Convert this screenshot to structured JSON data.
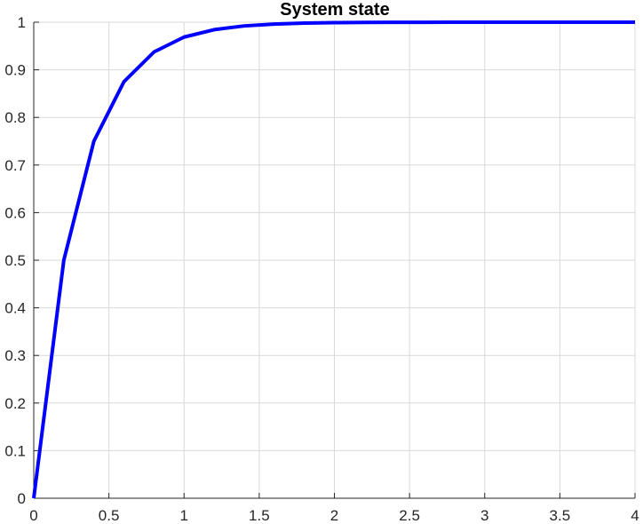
{
  "chart_data": {
    "type": "line",
    "title": "System state",
    "xlabel": "",
    "ylabel": "",
    "xlim": [
      0,
      4
    ],
    "ylim": [
      0,
      1
    ],
    "grid": true,
    "x_ticks": [
      0,
      0.5,
      1,
      1.5,
      2,
      2.5,
      3,
      3.5,
      4
    ],
    "x_tick_labels": [
      "0",
      "0.5",
      "1",
      "1.5",
      "2",
      "2.5",
      "3",
      "3.5",
      "4"
    ],
    "y_ticks": [
      0,
      0.1,
      0.2,
      0.3,
      0.4,
      0.5,
      0.6,
      0.7,
      0.8,
      0.9,
      1
    ],
    "y_tick_labels": [
      "0",
      "0.1",
      "0.2",
      "0.3",
      "0.4",
      "0.5",
      "0.6",
      "0.7",
      "0.8",
      "0.9",
      "1"
    ],
    "series": [
      {
        "color": "#0000ff",
        "x": [
          0,
          0.2,
          0.4,
          0.6,
          0.8,
          1.0,
          1.2,
          1.4,
          1.6,
          1.8,
          2.0,
          2.2,
          2.4,
          2.6,
          2.8,
          3.0,
          3.2,
          3.4,
          3.6,
          3.8,
          4.0
        ],
        "y": [
          0,
          0.5,
          0.75,
          0.875,
          0.9375,
          0.96875,
          0.984375,
          0.9921875,
          0.99609375,
          0.998046875,
          0.9990234375,
          0.99951171875,
          0.999755859375,
          0.9998779296875,
          0.99993896484375,
          0.999969482421875,
          0.9999847412109375,
          0.9999923706054688,
          0.9999961853027344,
          0.9999980926513672,
          0.9999990463256836
        ]
      }
    ]
  }
}
